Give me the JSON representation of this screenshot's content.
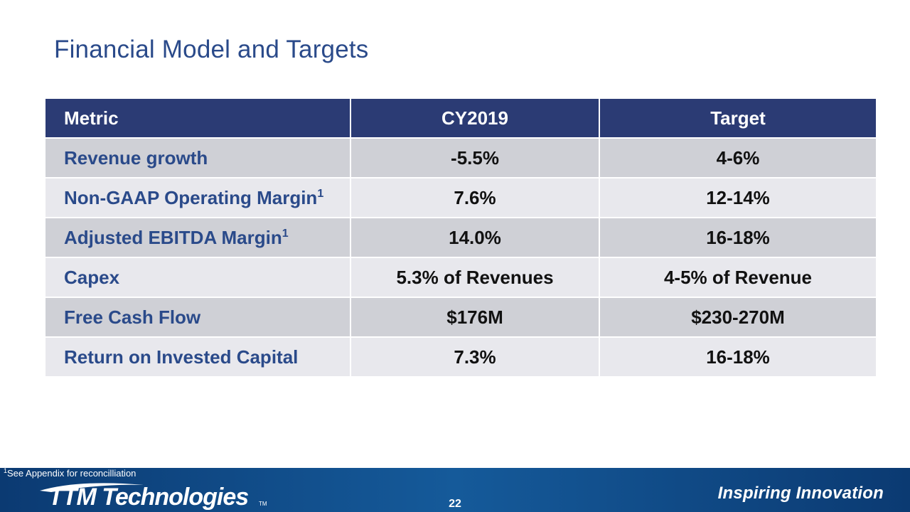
{
  "slide": {
    "title": "Financial Model and Targets",
    "page_number": "22"
  },
  "table": {
    "headers": [
      "Metric",
      "CY2019",
      "Target"
    ],
    "rows": [
      {
        "metric": "Revenue growth",
        "sup": "",
        "cy2019": "-5.5%",
        "target": "4-6%"
      },
      {
        "metric": "Non-GAAP Operating Margin",
        "sup": "1",
        "cy2019": "7.6%",
        "target": "12-14%"
      },
      {
        "metric": "Adjusted EBITDA Margin",
        "sup": "1",
        "cy2019": "14.0%",
        "target": "16-18%"
      },
      {
        "metric": "Capex",
        "sup": "",
        "cy2019": "5.3% of Revenues",
        "target": "4-5% of Revenue"
      },
      {
        "metric": "Free Cash Flow",
        "sup": "",
        "cy2019": "$176M",
        "target": "$230-270M"
      },
      {
        "metric": "Return on Invested Capital",
        "sup": "",
        "cy2019": "7.3%",
        "target": "16-18%"
      }
    ]
  },
  "footer": {
    "footnote_marker": "1",
    "footnote_text": "See Appendix for reconcilliation",
    "logo_text": "TTM Technologies",
    "logo_tm": "TM",
    "tagline": "Inspiring Innovation"
  },
  "colors": {
    "title": "#2a4a8a",
    "header_bg": "#2b3b74",
    "row_dark": "#cfd0d6",
    "row_light": "#e8e8ed",
    "footer_bg": "#0b3f78"
  }
}
